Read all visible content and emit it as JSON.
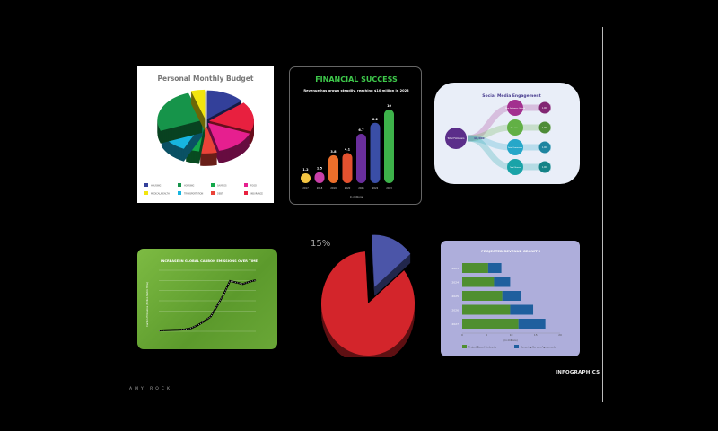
{
  "page": {
    "section_label": "INFOGRAPHICS",
    "author": "AMY ROCK"
  },
  "chart_data": [
    {
      "type": "pie",
      "title": "Personal Monthly Budget",
      "style": "3d-exploded",
      "slices": [
        {
          "label": "HOUSING",
          "value": 14,
          "color": "#33409a"
        },
        {
          "label": "INSURANCE",
          "value": 17,
          "color": "#e8203f"
        },
        {
          "label": "FOOD",
          "value": 15,
          "color": "#e61f8f"
        },
        {
          "label": "DEBT",
          "value": 6,
          "color": "#ea4338"
        },
        {
          "label": "SAVINGS",
          "value": 5,
          "color": "#14a84a"
        },
        {
          "label": "TRANSPORTATION",
          "value": 12,
          "color": "#17b5e0"
        },
        {
          "label": "HOUSING",
          "value": 26,
          "color": "#16944a"
        },
        {
          "label": "MEDICAL/HEALTH",
          "value": 5,
          "color": "#f2e50f"
        }
      ],
      "legend": [
        "HOUSING",
        "HOUSING",
        "SAVINGS",
        "FOOD",
        "MEDICAL/HEALTH",
        "TRANSPORTATION",
        "DEBT",
        "INSURANCE"
      ],
      "legend_colors": [
        "#33409a",
        "#16944a",
        "#14a84a",
        "#e61f8f",
        "#f2e50f",
        "#17b5e0",
        "#ea4338",
        "#e8203f"
      ],
      "legend_placement": "bottom"
    },
    {
      "type": "bar",
      "title": "FINANCIAL SUCCESS",
      "subtitle": "Revenue has grown steadily, reaching $10 million in 2023",
      "xlabel": "In millions",
      "categories": [
        "2017",
        "2018",
        "2019",
        "2020",
        "2021",
        "2022",
        "2023"
      ],
      "values": [
        1.2,
        1.5,
        3.8,
        4.1,
        6.7,
        8.2,
        10
      ],
      "value_labels": [
        "1.2",
        "1.5",
        "3.8",
        "4.1",
        "6.7",
        "8.2",
        "10"
      ],
      "colors": [
        "#f4c542",
        "#c93fa8",
        "#ec6f2b",
        "#e4512f",
        "#6a2e9c",
        "#3a4ea6",
        "#3db24a"
      ],
      "ylim": [
        0,
        10
      ],
      "title_color": "#3ec94b"
    },
    {
      "type": "diagram",
      "title": "Social Media Engagement",
      "root": {
        "label": "Total Followers",
        "value": "10,000"
      },
      "branches": [
        {
          "label": "New Followers Gained",
          "value": "1,000",
          "color": "#a3308f"
        },
        {
          "label": "Total Likes",
          "value": "1,000",
          "color": "#62b045"
        },
        {
          "label": "Total Comments",
          "value": "1,000",
          "color": "#26a7c9"
        },
        {
          "label": "Total Shares",
          "value": "1,000",
          "color": "#1aa3a8"
        }
      ]
    },
    {
      "type": "line",
      "title": "INCREASE IN GLOBAL CARBON EMISSIONS OVER TIME",
      "ylabel": "Carbon Emissions (Million Metric Tons)",
      "x": [
        0,
        1,
        2,
        3,
        4,
        5,
        6,
        7,
        8,
        9,
        10,
        11,
        12,
        13,
        14,
        15
      ],
      "values": [
        100,
        150,
        180,
        200,
        250,
        400,
        800,
        1300,
        1900,
        3300,
        4800,
        6600,
        6400,
        6200,
        6500,
        6700
      ],
      "ylim": [
        0,
        8000
      ],
      "grid": true
    },
    {
      "type": "pie",
      "style": "3d-exploded",
      "slices": [
        {
          "label": "15%",
          "value": 15,
          "color": "#4b55a8"
        },
        {
          "label": "",
          "value": 85,
          "color": "#d3252b"
        }
      ]
    },
    {
      "type": "bar",
      "orientation": "horizontal",
      "stacked": true,
      "title": "PROJECTED REVENUE GROWTH",
      "xlabel": "(in millions)",
      "categories": [
        "2023",
        "2024",
        "2025",
        "2026",
        "2027"
      ],
      "xticks": [
        "0",
        "5",
        "10",
        "15",
        "20"
      ],
      "xlim": [
        0,
        20
      ],
      "series": [
        {
          "name": "Project-Based Contracts",
          "values": [
            5.3,
            6.5,
            8.2,
            9.8,
            11.5
          ],
          "color": "#4f8f2f"
        },
        {
          "name": "Recurring Service Agreements",
          "values": [
            2.7,
            3.3,
            3.8,
            4.7,
            5.5
          ],
          "color": "#1f5f9e"
        }
      ],
      "legend_placement": "bottom"
    }
  ]
}
